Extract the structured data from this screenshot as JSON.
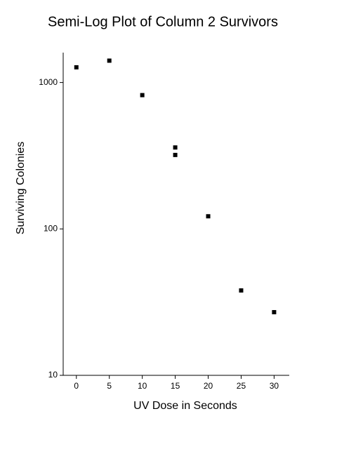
{
  "chart_data": {
    "type": "scatter",
    "title": "Semi-Log Plot of Column 2 Survivors",
    "x_label": "UV Dose in Seconds",
    "y_label": "Surviving Colonies",
    "x": [
      0,
      5,
      10,
      15,
      15,
      20,
      25,
      30
    ],
    "values": [
      1270,
      1410,
      820,
      360,
      320,
      122,
      38,
      27
    ],
    "color": "#000000",
    "ylog": true,
    "xlim": [
      -2,
      32.3
    ],
    "ylim": [
      10,
      1600
    ],
    "xticks": [
      0,
      5,
      10,
      15,
      20,
      25,
      30
    ],
    "yticks": [
      10,
      100,
      1000
    ]
  }
}
